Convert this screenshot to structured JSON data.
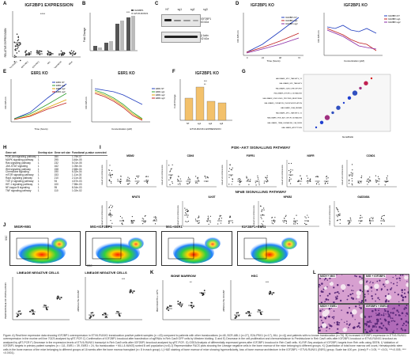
{
  "panels": {
    "A": {
      "letter": "A",
      "title": "IGF2BP1 EXPRESSION",
      "ylabel": "RELATIVE EXPRESSION",
      "sig": "****",
      "cats": [
        "ETV6-RUNX1",
        "BCR-ABL1",
        "E2A-PBX1",
        "MLL",
        "Hyperdiploid",
        "Other"
      ]
    },
    "B": {
      "letter": "B",
      "ylabel": "Fold Change",
      "legend": [
        "IGF2BP1",
        "ETV6-RUNX1"
      ],
      "sig": "***"
    },
    "C": {
      "letter": "C",
      "lanes": [
        "NT",
        "sg1",
        "sg2",
        "sg3"
      ],
      "bands": [
        "IGF2BP1",
        "β Actin"
      ],
      "kda": [
        "63",
        "42"
      ],
      "kda_unit": "kDa"
    },
    "D": {
      "letter": "D",
      "title1": "IGF2BP1 KO",
      "title2": "IGF2BP1 KO",
      "ylabel": "OD 495 nm",
      "xlabel1": "Time (hours)",
      "xlabel2": "Concentration (µM)",
      "legend1": [
        "IGF2BP1 NT",
        "IGF2BP1 sg1",
        "IGF2BP1 sg2"
      ],
      "legend2": [
        "IGF2BP1 NT",
        "IGF2BP1 sg1",
        "IGF2BP1 sg2"
      ],
      "xticks1": [
        "0",
        "24",
        "48",
        "72"
      ],
      "xticks2": [
        "0",
        "0.1",
        "0.5",
        "1",
        "2.5",
        "5",
        "10"
      ]
    },
    "E": {
      "letter": "E",
      "title1": "E6R1 KO",
      "title2": "E6R1 KO",
      "ylabel": "OD 495 nm",
      "xlabel1": "Time (hours)",
      "xlabel2": "Concentration (µM)",
      "legend1": [
        "E6R1 NT",
        "E6R1 sg1",
        "E6R1 sg2",
        "E6R1 sg3"
      ],
      "legend2": [
        "E6R1 NT",
        "E6R1 sg1",
        "E6R1 sg2",
        "E6R1 sg3"
      ]
    },
    "F": {
      "letter": "F",
      "title": "IGF2BP1 KO",
      "ylabel": "Fold Change",
      "xlabel": "ETV6-RUNX1 EXPRESSION",
      "cats": [
        "NT",
        "sg1",
        "sg2",
        "sg3"
      ],
      "sig": [
        "***",
        "**"
      ]
    },
    "G": {
      "letter": "G",
      "terms": [
        "HALLMARK_MYC_TARGETS_V1",
        "HALLMARK_E2F_TARGETS",
        "HALLMARK_G2M_CHECKPOINT",
        "HALLMARK_MTORC1_SIGNALING",
        "HALLMARK_UNFOLDED_PROTEIN_RESPONSE",
        "HALLMARK_OXIDATIVE_PHOSPHORYLATION",
        "HALLMARK_DNA_REPAIR",
        "HALLMARK_MYC_TARGETS_V2",
        "HALLMARK_PI3K_AKT_MTOR_SIGNALING",
        "HALLMARK_TNFA_SIGNALING_VIA_NFKB",
        "HALLMARK_APOPTOSIS"
      ],
      "xlabel": "GeneRatio"
    },
    "H": {
      "letter": "H",
      "cols": [
        "Gene set",
        "Overlap size",
        "Gene set size",
        "Functional p-value corrected"
      ],
      "rows": [
        [
          "PI3K-Akt signaling pathway",
          "1",
          "350",
          "1.79e-07"
        ],
        [
          "MAPK signaling pathway",
          "1",
          "295",
          "3.46e-05"
        ],
        [
          "Ras signaling pathway",
          "1",
          "232",
          "5.01e-05"
        ],
        [
          "JAK-STAT signaling",
          "1",
          "162",
          "1.05e-04"
        ],
        [
          "Wnt signaling pathway",
          "1",
          "158",
          "2.68e-04"
        ],
        [
          "Chemokine signaling",
          "1",
          "190",
          "6.32e-04"
        ],
        [
          "mTOR signaling pathway",
          "1",
          "153",
          "1.11e-03"
        ],
        [
          "Rap1 signaling pathway",
          "1",
          "210",
          "2.11e-03"
        ],
        [
          "TGF-β signaling pathway",
          "1",
          "94",
          "4.57e-03"
        ],
        [
          "HIF-1 signaling pathway",
          "1",
          "100",
          "7.98e-03"
        ],
        [
          "NF-kappa B signaling",
          "1",
          "95",
          "8.34e-03"
        ],
        [
          "TNF signaling pathway",
          "1",
          "110",
          "1.02e-02"
        ]
      ]
    },
    "I": {
      "letter": "I",
      "title_pi3k": "PI3K–AKT SIGNALLING PATHWAY",
      "title_nfkb": "NFκB SIGNALLING PATHWAY",
      "ylabel": "RELATIVE EXPRESSION",
      "genes_top": [
        "MDM2",
        "CDK6",
        "FGFR1",
        "NGFR",
        "CCND1"
      ],
      "genes_bottom": [
        "NFATS",
        "ILK6T",
        "NFKB2",
        "GADD45A"
      ],
      "cats": [
        "E-R1",
        "B-A1",
        "E-P1",
        "MLL",
        "Other"
      ]
    },
    "J": {
      "letter": "J",
      "flow": [
        "MIGR+MIG",
        "MIG+IGF2BP1",
        "MIG+E6R1",
        "IGF2BP1+E6R1"
      ],
      "ylabel": "SSC",
      "xlabel": "SSC",
      "lin_title": "LINEAGE NEGATIVE CELLS",
      "lin_ylabel": "PERCENTAGE OF POPULATION",
      "abs_title": "LINEAGE NEGATIVE CELLS",
      "abs_ylabel": "ABSOLUTE COUNT",
      "sig": "***"
    },
    "K": {
      "letter": "K",
      "bm_title": "BONE MARROW",
      "bm_ylabel": "BM COUNTS x 10^6",
      "hsc_title": "HSC",
      "hsc_ylabel": "ABSOLUTE COUNT",
      "sig": [
        "**",
        "***"
      ]
    },
    "L": {
      "letter": "L",
      "histo": [
        "MICH + MIG",
        "MIG + IGF2BP1",
        "MICH + E6R1",
        "IGF2BP1 + E6R1"
      ]
    }
  },
  "caption": "Figure. A) Real time expression data showing IGF2BP1 overexpression in ETV6-RUNX1 translocation positive patient samples (n =43) compared to patients with other translocations (n=48, BCR-ABL1 (n=27), E2A-PBX1 (n=17), MLL (n=4)) and patients with no known translocation (n=76). B) Increased IGF2BP1 expression in ETV6-RUNX1 overexpression in the murine cell line 70Z/3 analysed by qRT-PCR C) Confirmation of IGF2BP1 knockout after transfection of sgRNAs in Reh Cas9 GFP cells by Western blotting. D and E) Decrease in the cell proliferation and chemoresistance to Prednisolone in Reh Cas9 cells after IGF2BP1 knockout or ETV6-RUNX1 knockout as analysed by qRT-PCR F) Decrease in the expression levels of ETV6-RUNX1 transcript in Reh Cas9 cells after IGF2BP1 knockout analysed by qRT-PCR. G) GSEA Analysis of differentially expressed genes after IGF2BP1 knockout in Reh Cas9 cells. H) RIP-Seq analysis of IGF2BP1 targets from Reh cells using SEEN. I) Validation of IGF2BP1 targets in primary patient samples (n = 111, E6R1 = 39, E6R3 = 24, No translocation + MLL & MAKS) sorted B cell population (n=6) J) Representative FACS plots showing the Lineage negative cells in the bone marrow of the mice belonging to different groups. K) Quantitation of total bone marrow cell count, Hematopoietic stem cells in the bone marrow of the mice belonging to different groups at 16 weeks after the bone marrow transplant (n= 8 in each group). L) H&E staining of bone marrow of mice showing hypercellularity, loss of bone marrow architecture in the IGF2BP1 + ETV6-RUNX1 (E6R1) group. Scale bar:100 µm. (t-test) P < 0.05, ** <0.01, ***<0.005, ****<0.0001)."
}
